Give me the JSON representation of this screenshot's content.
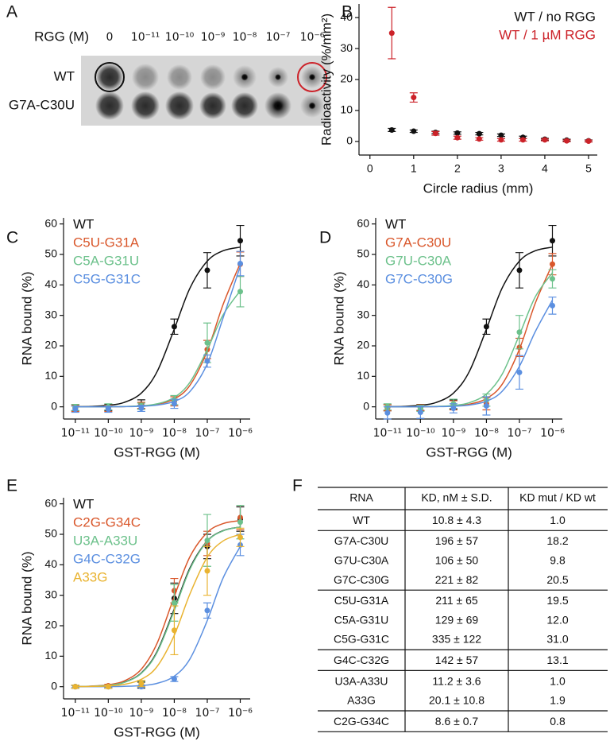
{
  "panel_labels": [
    "A",
    "B",
    "C",
    "D",
    "E",
    "F"
  ],
  "blot": {
    "label": "RGG (M)",
    "concentrations": [
      "0",
      "10⁻¹¹",
      "10⁻¹⁰",
      "10⁻⁹",
      "10⁻⁸",
      "10⁻⁷",
      "10⁻⁶"
    ],
    "rows": [
      "WT",
      "G7A-C30U"
    ]
  },
  "chart_data": [
    {
      "type": "scatter",
      "xlabel": "Circle radius (mm)",
      "ylabel": "Radioactivity (%/mm²)",
      "x": [
        0.5,
        1,
        1.5,
        2,
        2.5,
        3,
        3.5,
        4,
        4.5,
        5
      ],
      "xlim": [
        -0.25,
        5.2
      ],
      "xticks": [
        0,
        1,
        2,
        3,
        4,
        5
      ],
      "ylim": [
        -4.4,
        44.4
      ],
      "yticks": [
        0,
        10,
        20,
        30,
        40
      ],
      "legend": "upper right",
      "series": [
        {
          "name": "WT /  no RGG",
          "color": "#111111",
          "values": [
            3.7,
            3.3,
            2.9,
            2.7,
            2.5,
            2.0,
            1.3,
            0.7,
            0.4,
            0.2
          ],
          "errors": [
            0.5,
            0.4,
            0.4,
            0.4,
            0.4,
            0.4,
            0.4,
            0.3,
            0.3,
            0.3
          ]
        },
        {
          "name": "WT / 1 µM RGG",
          "color": "#cc2229",
          "values": [
            35,
            14.2,
            2.6,
            1.2,
            0.8,
            0.5,
            0.5,
            0.5,
            0.2,
            0.1
          ],
          "errors": [
            8.3,
            1.5,
            0.6,
            0.5,
            0.4,
            0.4,
            0.4,
            0.3,
            0.3,
            0.3
          ]
        }
      ]
    },
    {
      "type": "scatter",
      "xlabel": "GST-RGG (M)",
      "ylabel": "RNA bound (%)",
      "xscale": "log",
      "x": [
        1e-11,
        1e-10,
        1e-09,
        1e-08,
        1e-07,
        1e-06
      ],
      "fit_x": [
        1e-11,
        3e-11,
        1e-10,
        3e-10,
        1e-09,
        3e-09,
        1e-08,
        3e-08,
        1e-07,
        3e-07,
        1e-06
      ],
      "xlim": [
        4.4e-12,
        2e-06
      ],
      "xticks": [
        {
          "value": 1e-11,
          "label": "10⁻¹¹"
        },
        {
          "value": 1e-10,
          "label": "10⁻¹⁰"
        },
        {
          "value": 1e-09,
          "label": "10⁻⁹"
        },
        {
          "value": 1e-08,
          "label": "10⁻⁸"
        },
        {
          "value": 1e-07,
          "label": "10⁻⁷"
        },
        {
          "value": 1e-06,
          "label": "10⁻⁶"
        }
      ],
      "ylim": [
        -4,
        62
      ],
      "yticks": [
        0,
        10,
        20,
        30,
        40,
        50,
        60
      ],
      "legend": "upper left",
      "series": [
        {
          "name": "WT",
          "color": "#111111",
          "values": [
            -0.3,
            -0.2,
            0.8,
            26.3,
            44.8,
            54.5
          ],
          "errors": [
            1,
            1,
            1.5,
            2.5,
            5.8,
            5
          ],
          "fit": [
            0.05,
            0.15,
            0.49,
            1.43,
            4.49,
            11.5,
            25.5,
            39.0,
            47.8,
            51.2,
            52.4
          ]
        },
        {
          "name": "C5U-G31A",
          "color": "#d9572b",
          "values": [
            -0.5,
            -0.5,
            0.5,
            1.8,
            18.8,
            46.8
          ],
          "errors": [
            1,
            1,
            1,
            1.5,
            3,
            4
          ],
          "fit": [
            0.003,
            0.008,
            0.027,
            0.08,
            0.27,
            0.8,
            2.58,
            7.1,
            18.3,
            33.5,
            47.1
          ]
        },
        {
          "name": "C5A-G31U",
          "color": "#6cc18b",
          "values": [
            -0.2,
            0,
            0.2,
            2.2,
            21,
            37.8
          ],
          "errors": [
            1,
            1,
            1,
            1.5,
            6.5,
            5
          ],
          "fit": [
            0.003,
            0.01,
            0.033,
            0.1,
            0.33,
            0.98,
            3.1,
            8.1,
            18.8,
            30.1,
            38.1
          ]
        },
        {
          "name": "C5G-G31C",
          "color": "#5b8fe0",
          "values": [
            -0.8,
            -0.8,
            -0.5,
            1,
            15,
            47
          ],
          "errors": [
            1,
            1,
            1,
            1.5,
            2,
            4
          ],
          "fit": [
            0.002,
            0.006,
            0.018,
            0.055,
            0.18,
            0.55,
            1.78,
            5.05,
            14.1,
            29.1,
            46.1
          ]
        }
      ]
    },
    {
      "type": "scatter",
      "xlabel": "GST-RGG (M)",
      "ylabel": "RNA bound (%)",
      "xscale": "log",
      "x": [
        1e-11,
        1e-10,
        1e-09,
        1e-08,
        1e-07,
        1e-06
      ],
      "fit_x": [
        1e-11,
        3e-11,
        1e-10,
        3e-10,
        1e-09,
        3e-09,
        1e-08,
        3e-08,
        1e-07,
        3e-07,
        1e-06
      ],
      "xlim": [
        4.4e-12,
        2e-06
      ],
      "xticks": [
        {
          "value": 1e-11,
          "label": "10⁻¹¹"
        },
        {
          "value": 1e-10,
          "label": "10⁻¹⁰"
        },
        {
          "value": 1e-09,
          "label": "10⁻⁹"
        },
        {
          "value": 1e-08,
          "label": "10⁻⁸"
        },
        {
          "value": 1e-07,
          "label": "10⁻⁷"
        },
        {
          "value": 1e-06,
          "label": "10⁻⁶"
        }
      ],
      "ylim": [
        -4,
        62
      ],
      "yticks": [
        0,
        10,
        20,
        30,
        40,
        50,
        60
      ],
      "legend": "upper left",
      "series": [
        {
          "name": "WT",
          "color": "#111111",
          "values": [
            -0.3,
            -0.2,
            0.8,
            26.3,
            44.8,
            54.5
          ],
          "errors": [
            1,
            1,
            1.5,
            2.5,
            5.8,
            5
          ],
          "fit": [
            0.05,
            0.15,
            0.49,
            1.43,
            4.49,
            11.5,
            25.5,
            39.0,
            47.8,
            51.2,
            52.4
          ]
        },
        {
          "name": "G7A-C30U",
          "color": "#d9572b",
          "values": [
            -0.3,
            -0.3,
            0.5,
            1,
            19.5,
            46.8
          ],
          "errors": [
            1,
            1,
            1.5,
            2,
            3,
            3.5
          ],
          "fit": [
            0.003,
            0.009,
            0.029,
            0.086,
            0.28,
            0.84,
            2.72,
            7.4,
            18.9,
            33.9,
            46.8
          ]
        },
        {
          "name": "G7U-C30A",
          "color": "#6cc18b",
          "values": [
            0,
            -0.5,
            1,
            2.2,
            24.5,
            42
          ],
          "errors": [
            1,
            1,
            1.5,
            2,
            5.5,
            3
          ],
          "fit": [
            0.005,
            0.014,
            0.046,
            0.14,
            0.45,
            1.34,
            4.2,
            10.7,
            23.6,
            36.0,
            44.0
          ]
        },
        {
          "name": "G7C-C30G",
          "color": "#5b8fe0",
          "values": [
            -2,
            -1.8,
            -0.5,
            0.3,
            11.3,
            33.2
          ],
          "errors": [
            2,
            2,
            1.5,
            3,
            5.5,
            2.8
          ],
          "fit": [
            0.002,
            0.006,
            0.019,
            0.058,
            0.19,
            0.57,
            1.85,
            5.1,
            13.3,
            24.6,
            35.0
          ]
        }
      ]
    },
    {
      "type": "scatter",
      "xlabel": "GST-RGG (M)",
      "ylabel": "RNA bound (%)",
      "xscale": "log",
      "x": [
        1e-11,
        1e-10,
        1e-09,
        1e-08,
        1e-07,
        1e-06
      ],
      "fit_x": [
        1e-11,
        3e-11,
        1e-10,
        3e-10,
        1e-09,
        3e-09,
        1e-08,
        3e-08,
        1e-07,
        3e-07,
        1e-06
      ],
      "xlim": [
        4.4e-12,
        2e-06
      ],
      "xticks": [
        {
          "value": 1e-11,
          "label": "10⁻¹¹"
        },
        {
          "value": 1e-10,
          "label": "10⁻¹⁰"
        },
        {
          "value": 1e-09,
          "label": "10⁻⁹"
        },
        {
          "value": 1e-08,
          "label": "10⁻⁸"
        },
        {
          "value": 1e-07,
          "label": "10⁻⁷"
        },
        {
          "value": 1e-06,
          "label": "10⁻⁶"
        }
      ],
      "ylim": [
        -4,
        62
      ],
      "yticks": [
        0,
        10,
        20,
        30,
        40,
        50,
        60
      ],
      "legend": "upper left",
      "series": [
        {
          "name": "WT",
          "color": "#111111",
          "values": [
            0,
            0,
            0.5,
            29,
            46,
            55
          ],
          "errors": [
            0.5,
            0.5,
            1,
            5,
            4,
            4
          ],
          "fit": [
            0.05,
            0.15,
            0.49,
            1.43,
            4.49,
            11.5,
            25.5,
            39.0,
            47.8,
            51.2,
            52.4
          ]
        },
        {
          "name": "C2G-G34C",
          "color": "#d9572b",
          "values": [
            0,
            0.3,
            1,
            31.5,
            47,
            55.5
          ],
          "errors": [
            0.5,
            0.5,
            1,
            4,
            4,
            4
          ],
          "fit": [
            0.064,
            0.19,
            0.63,
            1.85,
            5.73,
            14.2,
            29.6,
            42.7,
            50.6,
            53.5,
            54.5
          ]
        },
        {
          "name": "U3A-A33U",
          "color": "#6cc18b",
          "values": [
            0,
            0,
            0.8,
            27.5,
            48,
            54
          ],
          "errors": [
            0.5,
            0.5,
            1,
            6,
            8.5,
            5.5
          ],
          "fit": [
            0.047,
            0.14,
            0.47,
            1.38,
            4.35,
            11.2,
            25.0,
            38.6,
            47.7,
            51.1,
            52.4
          ]
        },
        {
          "name": "G4C-C32G",
          "color": "#5b8fe0",
          "values": [
            0,
            0,
            0,
            2.5,
            25,
            46.5
          ],
          "errors": [
            0.3,
            0.3,
            0.3,
            0.8,
            2.5,
            3.5
          ],
          "fit": [
            0.004,
            0.011,
            0.037,
            0.11,
            0.37,
            1.09,
            3.45,
            9.15,
            21.7,
            35.6,
            46.0
          ]
        },
        {
          "name": "A33G",
          "color": "#e9b330",
          "values": [
            0,
            0,
            1,
            18.5,
            38,
            49
          ],
          "errors": [
            0.5,
            0.5,
            1,
            8,
            8,
            3
          ],
          "fit": [
            0.025,
            0.076,
            0.25,
            0.75,
            2.42,
            6.6,
            16.9,
            30.5,
            42.5,
            47.8,
            50.0
          ]
        }
      ]
    }
  ],
  "table": {
    "header": [
      "RNA",
      "KD, nM ± S.D.",
      "KD mut / KD wt"
    ],
    "groups": [
      [
        [
          "WT",
          "10.8 ± 4.3",
          "1.0"
        ]
      ],
      [
        [
          "G7A-C30U",
          "196 ± 57",
          "18.2"
        ],
        [
          "G7U-C30A",
          "106 ± 50",
          "9.8"
        ],
        [
          "G7C-C30G",
          "221 ± 82",
          "20.5"
        ]
      ],
      [
        [
          "C5U-G31A",
          "211 ± 65",
          "19.5"
        ],
        [
          "C5A-G31U",
          "129 ± 69",
          "12.0"
        ],
        [
          "C5G-G31C",
          "335 ± 122",
          "31.0"
        ]
      ],
      [
        [
          "G4C-C32G",
          "142 ± 57",
          "13.1"
        ]
      ],
      [
        [
          "U3A-A33U",
          "11.2 ± 3.6",
          "1.0"
        ],
        [
          "A33G",
          "20.1 ± 10.8",
          "1.9"
        ]
      ],
      [
        [
          "C2G-G34C",
          "8.6 ± 0.7",
          "0.8"
        ]
      ]
    ]
  }
}
